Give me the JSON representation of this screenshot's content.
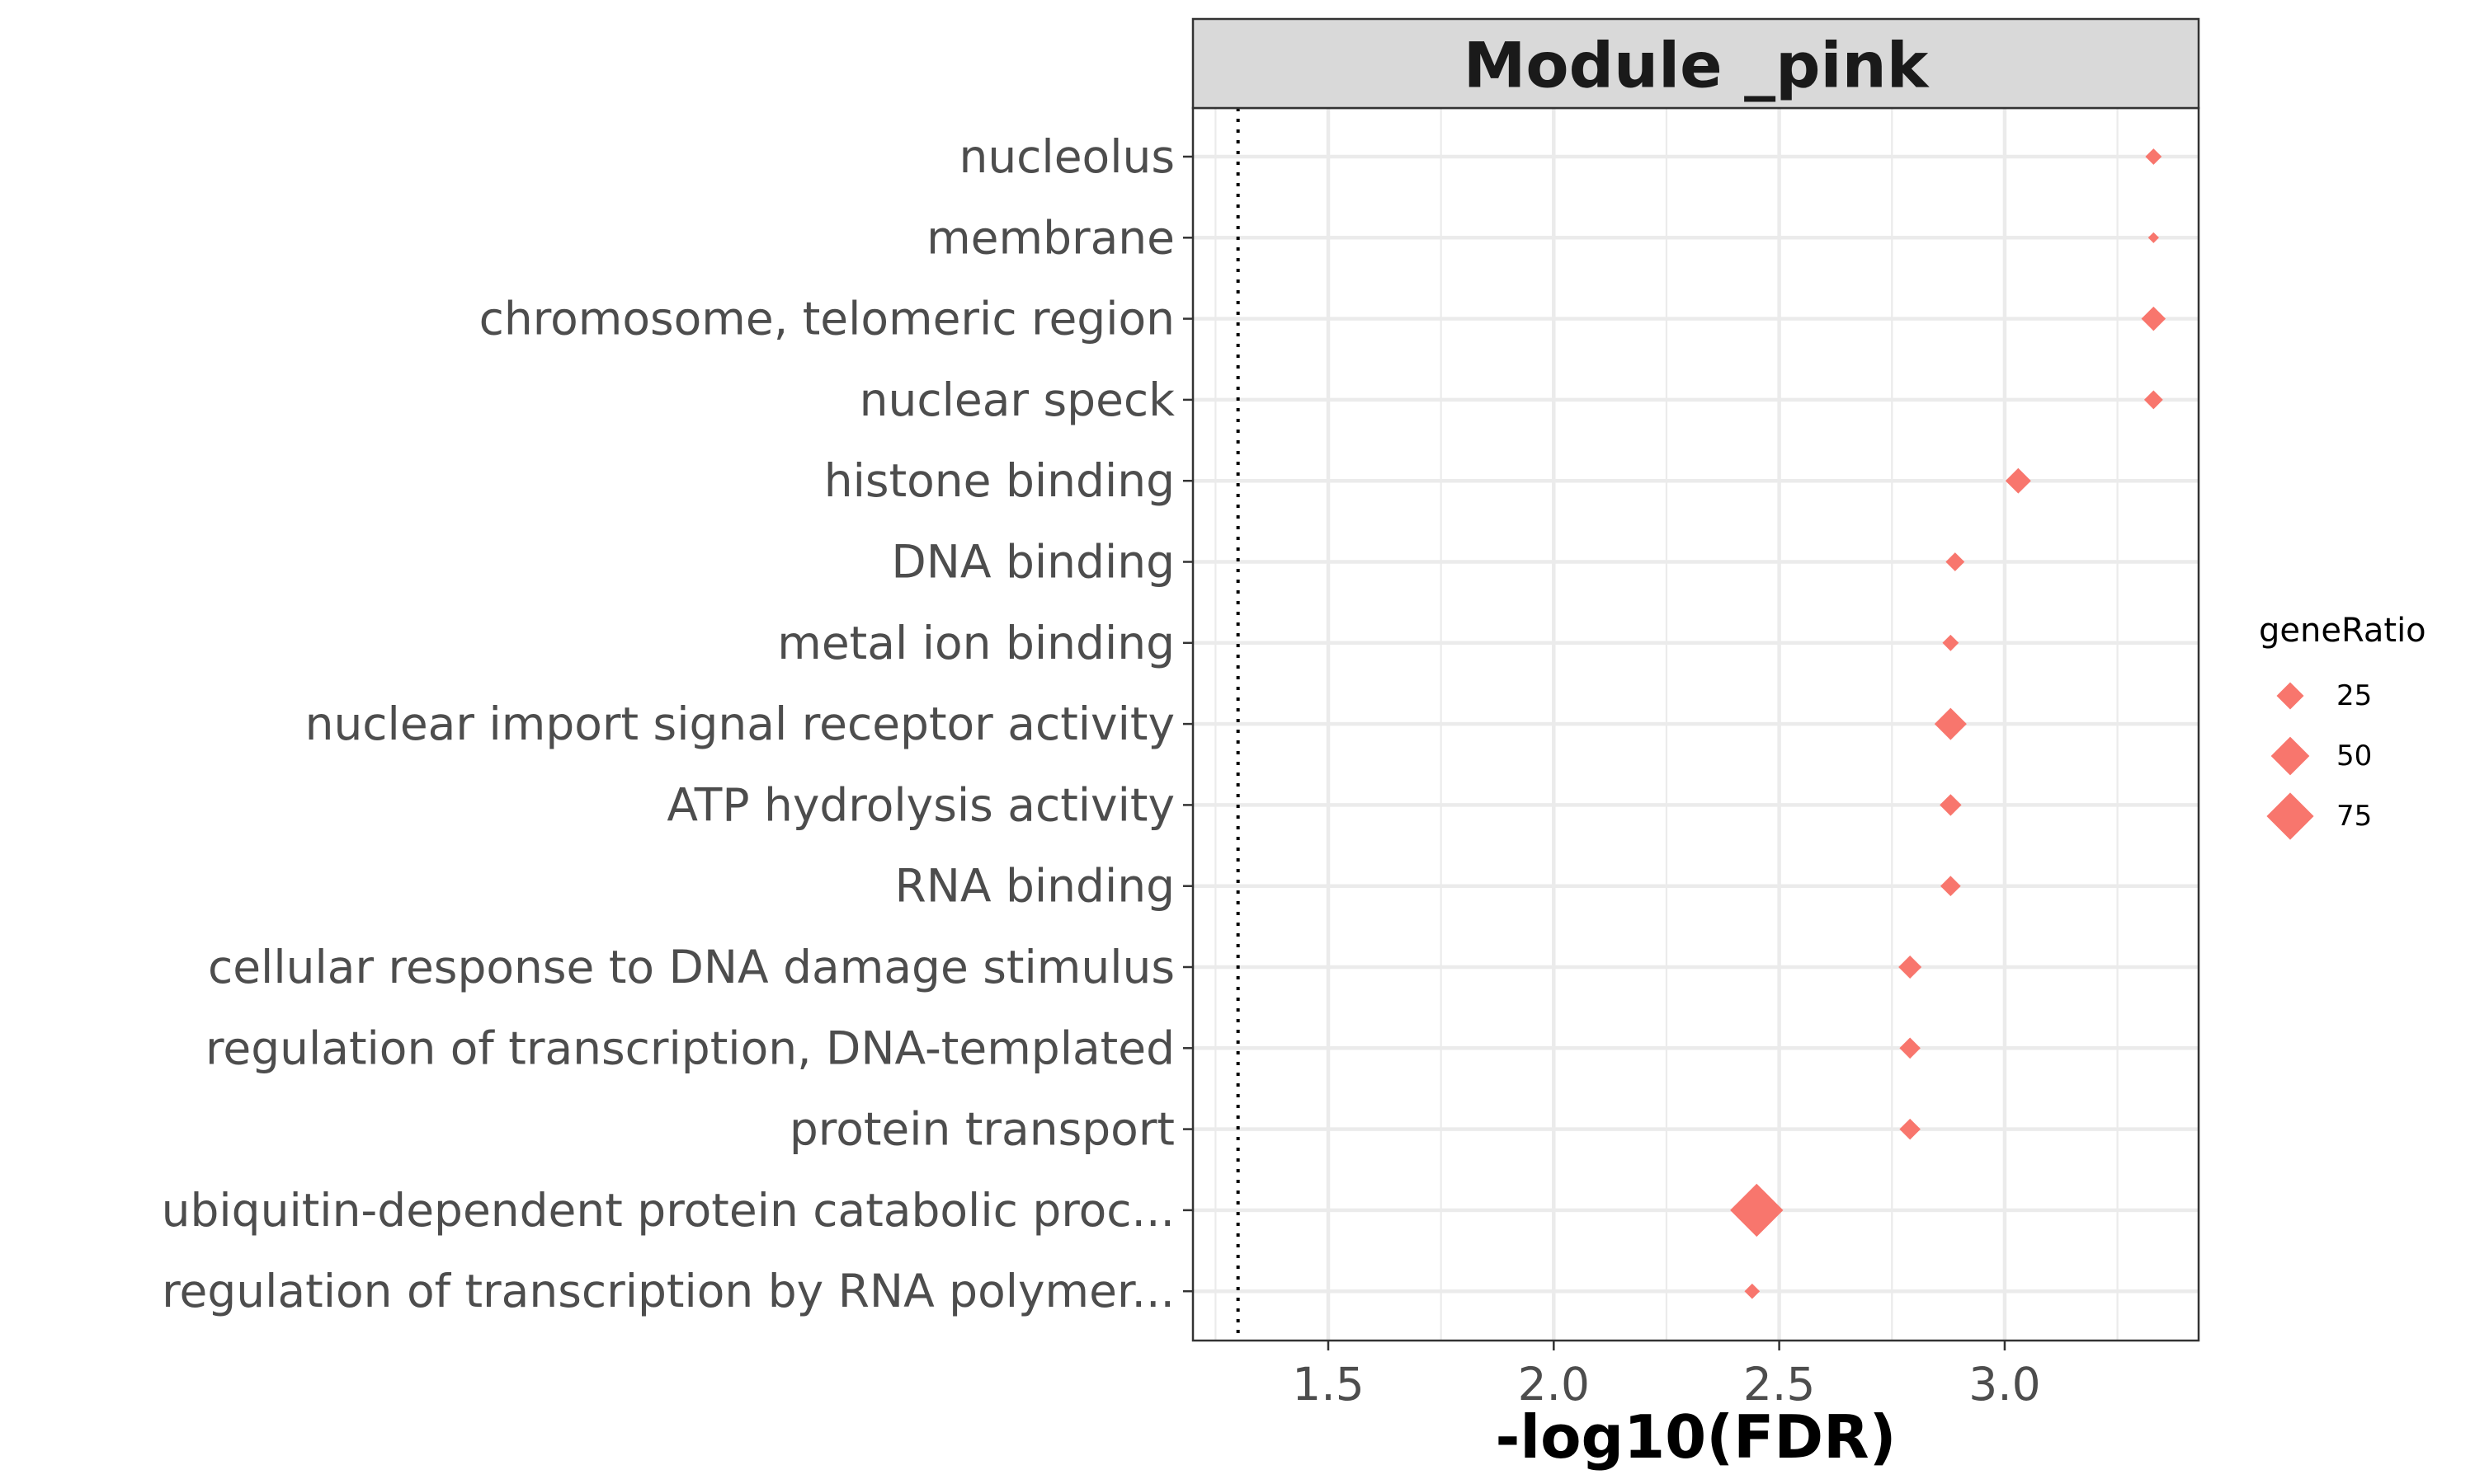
{
  "chart_data": {
    "type": "scatter",
    "facet_title": "Module _pink",
    "xlabel": "-log10(FDR)",
    "ylabel": "",
    "xlim": [
      1.2,
      3.43
    ],
    "x_ticks": [
      1.5,
      2.0,
      2.5,
      3.0
    ],
    "x_tick_labels": [
      "1.5",
      "2.0",
      "2.5",
      "3.0"
    ],
    "reference_line_x": 1.3,
    "grid": true,
    "point_color": "#f8766d",
    "categories": [
      "nucleolus",
      "membrane",
      "chromosome, telomeric region",
      "nuclear speck",
      "histone binding",
      "DNA binding",
      "metal ion binding",
      "nuclear import signal receptor activity",
      "ATP hydrolysis activity",
      "RNA binding",
      "cellular response to DNA damage stimulus",
      "regulation of transcription, DNA-templated",
      "protein transport",
      "ubiquitin-dependent protein catabolic proc...",
      "regulation of transcription by RNA polymer..."
    ],
    "x": [
      3.33,
      3.33,
      3.33,
      3.33,
      3.03,
      2.89,
      2.88,
      2.88,
      2.88,
      2.88,
      2.79,
      2.79,
      2.79,
      2.45,
      2.44
    ],
    "gene_ratio": [
      9,
      4,
      20,
      12,
      22,
      12,
      9,
      35,
      16,
      14,
      18,
      15,
      15,
      95,
      8
    ],
    "legend": {
      "title": "geneRatio",
      "position": "right",
      "entries": [
        {
          "label": "25",
          "value": 25
        },
        {
          "label": "50",
          "value": 50
        },
        {
          "label": "75",
          "value": 75
        }
      ]
    }
  }
}
